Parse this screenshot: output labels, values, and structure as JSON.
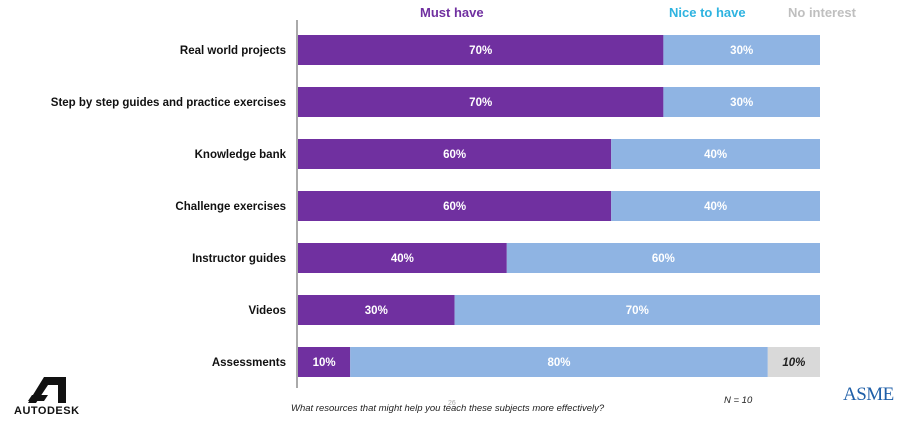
{
  "legend": {
    "must_have": "Must have",
    "nice_to_have": "Nice to have",
    "no_interest": "No interest"
  },
  "colors": {
    "must_have": "#7030a0",
    "nice_to_have": "#8fb4e3",
    "no_interest": "#d9d9d9",
    "nice_to_have_legend": "#2eb3e0",
    "no_interest_legend": "#bfbfbf"
  },
  "chart_data": {
    "type": "bar",
    "orientation": "horizontal",
    "stacked": true,
    "categories": [
      "Real world projects",
      "Step by step guides and practice exercises",
      "Knowledge bank",
      "Challenge exercises",
      "Instructor guides",
      "Videos",
      "Assessments"
    ],
    "series": [
      {
        "name": "Must have",
        "values": [
          70,
          70,
          60,
          60,
          40,
          30,
          10
        ]
      },
      {
        "name": "Nice to have",
        "values": [
          30,
          30,
          40,
          40,
          60,
          70,
          80
        ]
      },
      {
        "name": "No interest",
        "values": [
          0,
          0,
          0,
          0,
          0,
          0,
          10
        ]
      }
    ],
    "value_suffix": "%",
    "xlim": [
      0,
      100
    ],
    "legend_position": "top",
    "grid": false
  },
  "footer": {
    "question": "What resources that might help you teach these subjects more effectively?",
    "sample_size": "N = 10",
    "page_number": "26"
  },
  "logos": {
    "autodesk": "AUTODESK",
    "asme": "ASME"
  }
}
